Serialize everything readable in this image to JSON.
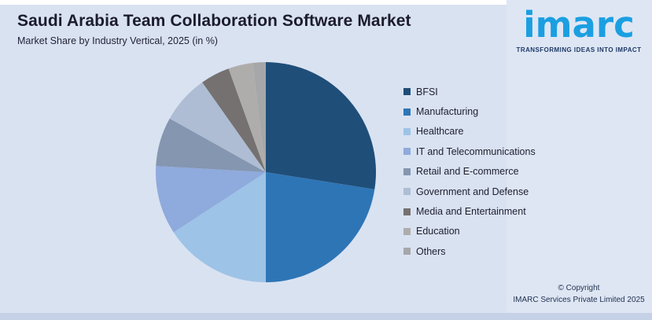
{
  "header": {
    "title": "Saudi Arabia Team Collaboration Software Market",
    "subtitle": "Market Share by Industry Vertical, 2025 (in %)"
  },
  "chart_data": {
    "type": "pie",
    "title": "Saudi Arabia Team Collaboration Software Market",
    "subtitle": "Market Share by Industry Vertical, 2025 (in %)",
    "unit": "%",
    "year": "2025",
    "legend_position": "right",
    "data_labels_shown": false,
    "start_angle_deg": 0,
    "direction": "clockwise",
    "slices": [
      {
        "label": "BFSI",
        "value": 27.5,
        "color": "#1F4E79"
      },
      {
        "label": "Manufacturing",
        "value": 22.5,
        "color": "#2E75B6"
      },
      {
        "label": "Healthcare",
        "value": 15.8,
        "color": "#9DC3E6"
      },
      {
        "label": "IT and Telecommunications",
        "value": 10.1,
        "color": "#8FAADC"
      },
      {
        "label": "Retail and E-commerce",
        "value": 7.2,
        "color": "#8496B0"
      },
      {
        "label": "Government and Defense",
        "value": 7.1,
        "color": "#AEBDD3"
      },
      {
        "label": "Media and Entertainment",
        "value": 4.3,
        "color": "#757170"
      },
      {
        "label": "Education",
        "value": 3.6,
        "color": "#AFADAB"
      },
      {
        "label": "Others",
        "value": 1.9,
        "color": "#A5A7A9"
      }
    ]
  },
  "branding": {
    "logo_text": "imarc",
    "tagline": "TRANSFORMING IDEAS INTO IMPACT"
  },
  "footer": {
    "copyright_line1": "© Copyright",
    "copyright_line2": "IMARC Services Private Limited 2025"
  },
  "colors": {
    "background": "#D9E2F1",
    "right_panel": "#DEE6F4",
    "bottom_band": "#C5D1E7",
    "title_text": "#1C1C2E",
    "legend_text": "#1E1E30",
    "logo_blue": "#1B9FE1",
    "tagline_navy": "#1E3A66"
  }
}
